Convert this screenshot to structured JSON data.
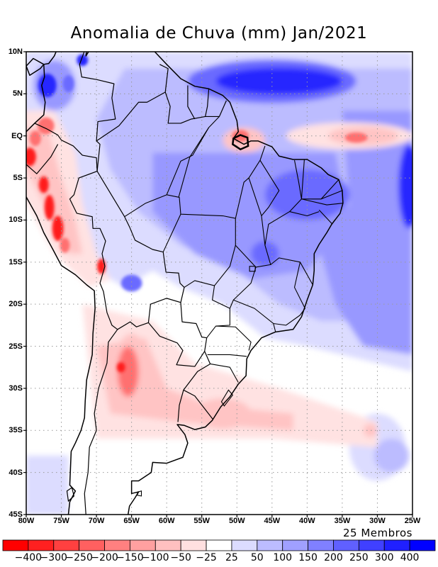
{
  "title": "Anomalia de Chuva (mm) Jan/2021",
  "footer_note": "25 Membros",
  "map": {
    "lon_range": [
      -80,
      -25
    ],
    "lat_range": [
      -45,
      10
    ],
    "lat_ticks": [
      {
        "value": 10,
        "label": "10N"
      },
      {
        "value": 5,
        "label": "5N"
      },
      {
        "value": 0,
        "label": "EQ"
      },
      {
        "value": -5,
        "label": "5S"
      },
      {
        "value": -10,
        "label": "10S"
      },
      {
        "value": -15,
        "label": "15S"
      },
      {
        "value": -20,
        "label": "20S"
      },
      {
        "value": -25,
        "label": "25S"
      },
      {
        "value": -30,
        "label": "30S"
      },
      {
        "value": -35,
        "label": "35S"
      },
      {
        "value": -40,
        "label": "40S"
      },
      {
        "value": -45,
        "label": "45S"
      }
    ],
    "lon_ticks": [
      {
        "value": -80,
        "label": "80W"
      },
      {
        "value": -75,
        "label": "75W"
      },
      {
        "value": -70,
        "label": "70W"
      },
      {
        "value": -65,
        "label": "65W"
      },
      {
        "value": -60,
        "label": "60W"
      },
      {
        "value": -55,
        "label": "55W"
      },
      {
        "value": -50,
        "label": "50W"
      },
      {
        "value": -45,
        "label": "45W"
      },
      {
        "value": -40,
        "label": "40W"
      },
      {
        "value": -35,
        "label": "35W"
      },
      {
        "value": -30,
        "label": "30W"
      },
      {
        "value": -25,
        "label": "25W"
      }
    ]
  },
  "colorbar": {
    "colors": [
      "#ff0000",
      "#ff2020",
      "#ff4040",
      "#ff6060",
      "#ff8080",
      "#ffa0a0",
      "#ffc0c0",
      "#ffe0e0",
      "#ffffff",
      "#dcdcff",
      "#bcbcff",
      "#a0a0ff",
      "#8080ff",
      "#6060ff",
      "#4040ff",
      "#2020ff",
      "#0000ff"
    ],
    "labels": [
      "-400",
      "-300",
      "-250",
      "-200",
      "-150",
      "-100",
      "-50",
      "-25",
      "25",
      "50",
      "100",
      "150",
      "200",
      "250",
      "300",
      "400"
    ]
  },
  "palette": {
    "red_strong": "#ff1a1a",
    "red_mid": "#ff7070",
    "red_light": "#ffc4c4",
    "red_faint": "#ffe2e2",
    "blue_faint": "#dcdcff",
    "blue_light": "#bcbcff",
    "blue_mid": "#9898ff",
    "blue_dark": "#6a6aff",
    "blue_strong": "#2828ff",
    "coast": "#000000",
    "grid": "#9a9a9a"
  }
}
